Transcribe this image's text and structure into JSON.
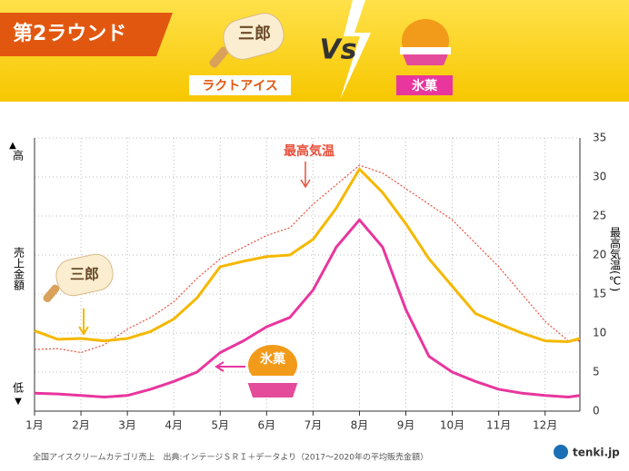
{
  "header": {
    "round": "第2ラウンド",
    "item1": "三郎",
    "item1_category": "ラクトアイス",
    "vs": "Vs",
    "item2_category": "氷菓"
  },
  "chart_data": {
    "type": "line",
    "left_axis": {
      "high": "高",
      "label": "売上金額",
      "low": "低"
    },
    "y_label": "最高気温(℃)",
    "x": [
      1,
      1.5,
      2,
      2.5,
      3,
      3.5,
      4,
      4.5,
      5,
      5.5,
      6,
      6.5,
      7,
      7.5,
      8,
      8.5,
      9,
      9.5,
      10,
      10.5,
      11,
      11.5,
      12,
      12.5,
      12.75
    ],
    "xlim": [
      1,
      12.75
    ],
    "xticks": [
      {
        "value": 1,
        "label": "1月"
      },
      {
        "value": 2,
        "label": "2月"
      },
      {
        "value": 3,
        "label": "3月"
      },
      {
        "value": 4,
        "label": "4月"
      },
      {
        "value": 5,
        "label": "5月"
      },
      {
        "value": 6,
        "label": "6月"
      },
      {
        "value": 7,
        "label": "7月"
      },
      {
        "value": 8,
        "label": "8月"
      },
      {
        "value": 9,
        "label": "9月"
      },
      {
        "value": 10,
        "label": "10月"
      },
      {
        "value": 11,
        "label": "11月"
      },
      {
        "value": 12,
        "label": "12月"
      }
    ],
    "ylim": [
      0,
      35
    ],
    "yticks": [
      0,
      5,
      10,
      15,
      20,
      25,
      30,
      35
    ],
    "grid": true,
    "series": [
      {
        "name": "最高気温",
        "color": "#e8503c",
        "dash": true,
        "values": [
          7.9,
          8,
          7.5,
          8.5,
          10.5,
          12,
          14,
          17,
          19.5,
          21,
          22.5,
          23.5,
          26.5,
          29,
          31.5,
          30.5,
          28.5,
          26.5,
          24.5,
          21.5,
          18.5,
          15,
          11.5,
          9,
          9
        ]
      },
      {
        "name": "三郎",
        "color": "#f5b800",
        "values": [
          10.3,
          9.2,
          9.3,
          9,
          9.3,
          10.2,
          11.8,
          14.5,
          18.5,
          19.2,
          19.8,
          20,
          22,
          26,
          31,
          28,
          24,
          19.5,
          16,
          12.5,
          11.2,
          10,
          9,
          8.9,
          9.3
        ]
      },
      {
        "name": "氷菓",
        "color": "#e8369e",
        "values": [
          2.3,
          2.2,
          2,
          1.8,
          2,
          2.8,
          3.8,
          5,
          7.5,
          9,
          10.8,
          12,
          15.5,
          21,
          24.5,
          21,
          13,
          7,
          5,
          3.8,
          2.8,
          2.3,
          2,
          1.8,
          2
        ]
      }
    ],
    "source": "全国アイスクリームカテゴリ売上　出典:インテージＳＲＩ＋データより（2017～2020年の平均販売金額）",
    "logo": "tenki.jp"
  }
}
